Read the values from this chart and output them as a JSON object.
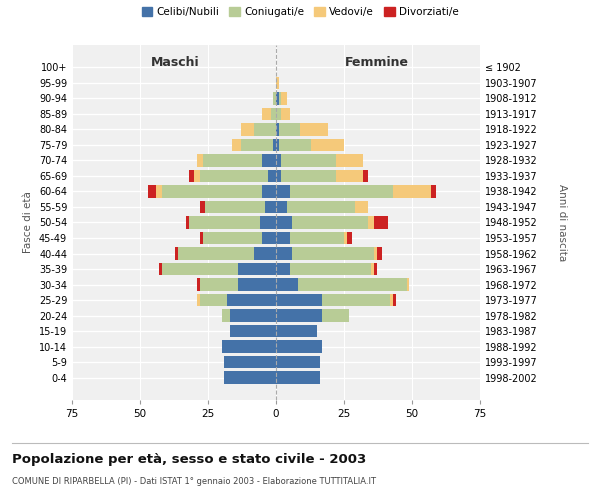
{
  "age_groups": [
    "0-4",
    "5-9",
    "10-14",
    "15-19",
    "20-24",
    "25-29",
    "30-34",
    "35-39",
    "40-44",
    "45-49",
    "50-54",
    "55-59",
    "60-64",
    "65-69",
    "70-74",
    "75-79",
    "80-84",
    "85-89",
    "90-94",
    "95-99",
    "100+"
  ],
  "birth_years": [
    "1998-2002",
    "1993-1997",
    "1988-1992",
    "1983-1987",
    "1978-1982",
    "1973-1977",
    "1968-1972",
    "1963-1967",
    "1958-1962",
    "1953-1957",
    "1948-1952",
    "1943-1947",
    "1938-1942",
    "1933-1937",
    "1928-1932",
    "1923-1927",
    "1918-1922",
    "1913-1917",
    "1908-1912",
    "1903-1907",
    "≤ 1902"
  ],
  "male": {
    "celibi": [
      19,
      19,
      20,
      17,
      17,
      18,
      14,
      14,
      8,
      5,
      6,
      4,
      5,
      3,
      5,
      1,
      0,
      0,
      0,
      0,
      0
    ],
    "coniugati": [
      0,
      0,
      0,
      0,
      3,
      10,
      14,
      28,
      28,
      22,
      26,
      22,
      37,
      25,
      22,
      12,
      8,
      2,
      1,
      0,
      0
    ],
    "vedovi": [
      0,
      0,
      0,
      0,
      0,
      1,
      0,
      0,
      0,
      0,
      0,
      0,
      2,
      2,
      2,
      3,
      5,
      3,
      0,
      0,
      0
    ],
    "divorziati": [
      0,
      0,
      0,
      0,
      0,
      0,
      1,
      1,
      1,
      1,
      1,
      2,
      3,
      2,
      0,
      0,
      0,
      0,
      0,
      0,
      0
    ]
  },
  "female": {
    "nubili": [
      16,
      16,
      17,
      15,
      17,
      17,
      8,
      5,
      6,
      5,
      6,
      4,
      5,
      2,
      2,
      1,
      1,
      0,
      1,
      0,
      0
    ],
    "coniugate": [
      0,
      0,
      0,
      0,
      10,
      25,
      40,
      30,
      30,
      20,
      28,
      25,
      38,
      20,
      20,
      12,
      8,
      2,
      1,
      0,
      0
    ],
    "vedove": [
      0,
      0,
      0,
      0,
      0,
      1,
      1,
      1,
      1,
      1,
      2,
      5,
      14,
      10,
      10,
      12,
      10,
      3,
      2,
      1,
      0
    ],
    "divorziate": [
      0,
      0,
      0,
      0,
      0,
      1,
      0,
      1,
      2,
      2,
      5,
      0,
      2,
      2,
      0,
      0,
      0,
      0,
      0,
      0,
      0
    ]
  },
  "colors": {
    "celibi": "#4472A8",
    "coniugati": "#B8CC96",
    "vedovi": "#F5C97A",
    "divorziati": "#CC2222"
  },
  "xlim": 75,
  "title": "Popolazione per età, sesso e stato civile - 2003",
  "subtitle": "COMUNE DI RIPARBELLA (PI) - Dati ISTAT 1° gennaio 2003 - Elaborazione TUTTITALIA.IT",
  "ylabel_left": "Fasce di età",
  "ylabel_right": "Anni di nascita",
  "xlabel_left": "Maschi",
  "xlabel_right": "Femmine",
  "bg_color": "#f0f0f0",
  "bar_height": 0.8
}
